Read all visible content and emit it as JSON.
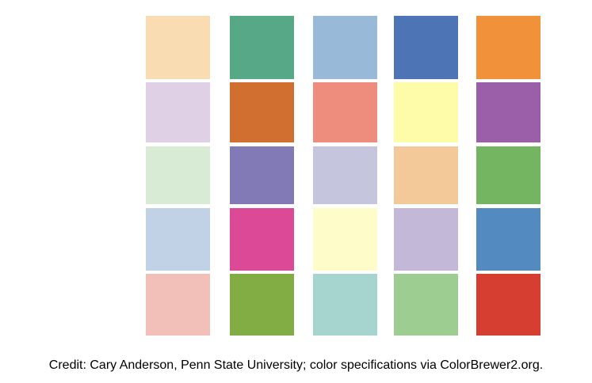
{
  "swatches": {
    "rows": [
      [
        "#f9dcb1",
        "#56a886",
        "#98b9d7",
        "#4d74b4",
        "#f19139"
      ],
      [
        "#e0d0e6",
        "#d06f30",
        "#ee8d7e",
        "#fefca9",
        "#9a5fa8"
      ],
      [
        "#d8ebd4",
        "#817ab6",
        "#c6c5de",
        "#f4c99a",
        "#74b562"
      ],
      [
        "#c1d2e7",
        "#dc4996",
        "#fefdc9",
        "#c4b8d9",
        "#538ac0"
      ],
      [
        "#f2c0b9",
        "#81ad44",
        "#a6d5d0",
        "#9dcd90",
        "#d73e32"
      ]
    ]
  },
  "credit": "Credit: Cary Anderson, Penn State University; color specifications via ColorBrewer2.org."
}
